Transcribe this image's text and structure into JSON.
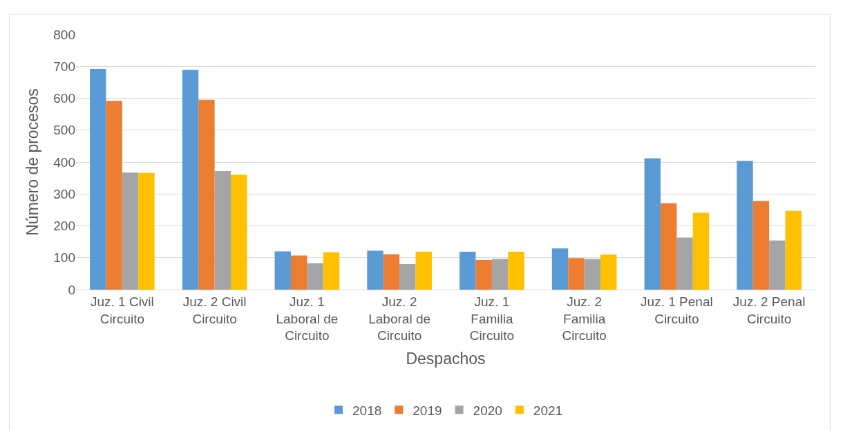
{
  "chart_data": {
    "type": "bar",
    "xlabel": "Despachos",
    "ylabel": "Número de procesos",
    "categories": [
      "Juz. 1 Civil Circuito",
      "Juz. 2 Civil Circuito",
      "Juz. 1 Laboral de Circuito",
      "Juz. 2 Laboral de Circuito",
      "Juz. 1 Familia Circuito",
      "Juz. 2 Familia Circuito",
      "Juz. 1 Penal Circuito",
      "Juz. 2 Penal Circuito"
    ],
    "series": [
      {
        "name": "2018",
        "color": "#5b9bd5",
        "values": [
          692,
          689,
          120,
          122,
          119,
          129,
          412,
          404
        ]
      },
      {
        "name": "2019",
        "color": "#ed7d31",
        "values": [
          592,
          595,
          107,
          111,
          93,
          99,
          271,
          278
        ]
      },
      {
        "name": "2020",
        "color": "#a5a5a5",
        "values": [
          367,
          372,
          83,
          80,
          96,
          96,
          163,
          154
        ]
      },
      {
        "name": "2021",
        "color": "#ffc000",
        "values": [
          366,
          360,
          117,
          119,
          119,
          110,
          241,
          247
        ]
      }
    ],
    "ylim": [
      0,
      800
    ],
    "yticks": [
      0,
      100,
      200,
      300,
      400,
      500,
      600,
      700,
      800
    ],
    "grid": "y",
    "legend": "bottom"
  }
}
